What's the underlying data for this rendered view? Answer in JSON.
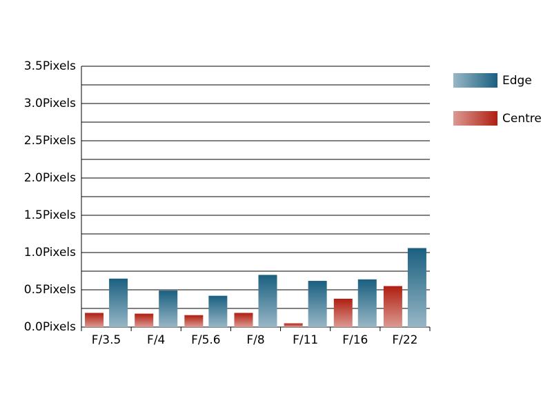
{
  "chart_data": {
    "type": "bar",
    "categories": [
      "F/3.5",
      "F/4",
      "F/5.6",
      "F/8",
      "F/11",
      "F/16",
      "F/22"
    ],
    "series": [
      {
        "name": "Centre",
        "color": "#b01e10",
        "values": [
          0.19,
          0.18,
          0.16,
          0.19,
          0.05,
          0.38,
          0.55
        ]
      },
      {
        "name": "Edge",
        "color": "#1a5f80",
        "values": [
          0.65,
          0.49,
          0.42,
          0.7,
          0.62,
          0.64,
          1.06
        ]
      }
    ],
    "ylim": [
      0,
      3.5
    ],
    "yticks": [
      {
        "value": 0,
        "label": "0.0Pixels"
      },
      {
        "value": 0.5,
        "label": "0.5Pixels"
      },
      {
        "value": 1,
        "label": "1.0Pixels"
      },
      {
        "value": 1.5,
        "label": "1.5Pixels"
      },
      {
        "value": 2,
        "label": "2.0Pixels"
      },
      {
        "value": 2.5,
        "label": "2.5Pixels"
      },
      {
        "value": 3,
        "label": "3.0Pixels"
      },
      {
        "value": 3.5,
        "label": "3.5Pixels"
      }
    ],
    "minor_yticks": [
      0.25,
      0.75,
      1.25,
      1.75,
      2.25,
      2.75,
      3.25
    ],
    "grid": true,
    "legend": "right"
  }
}
